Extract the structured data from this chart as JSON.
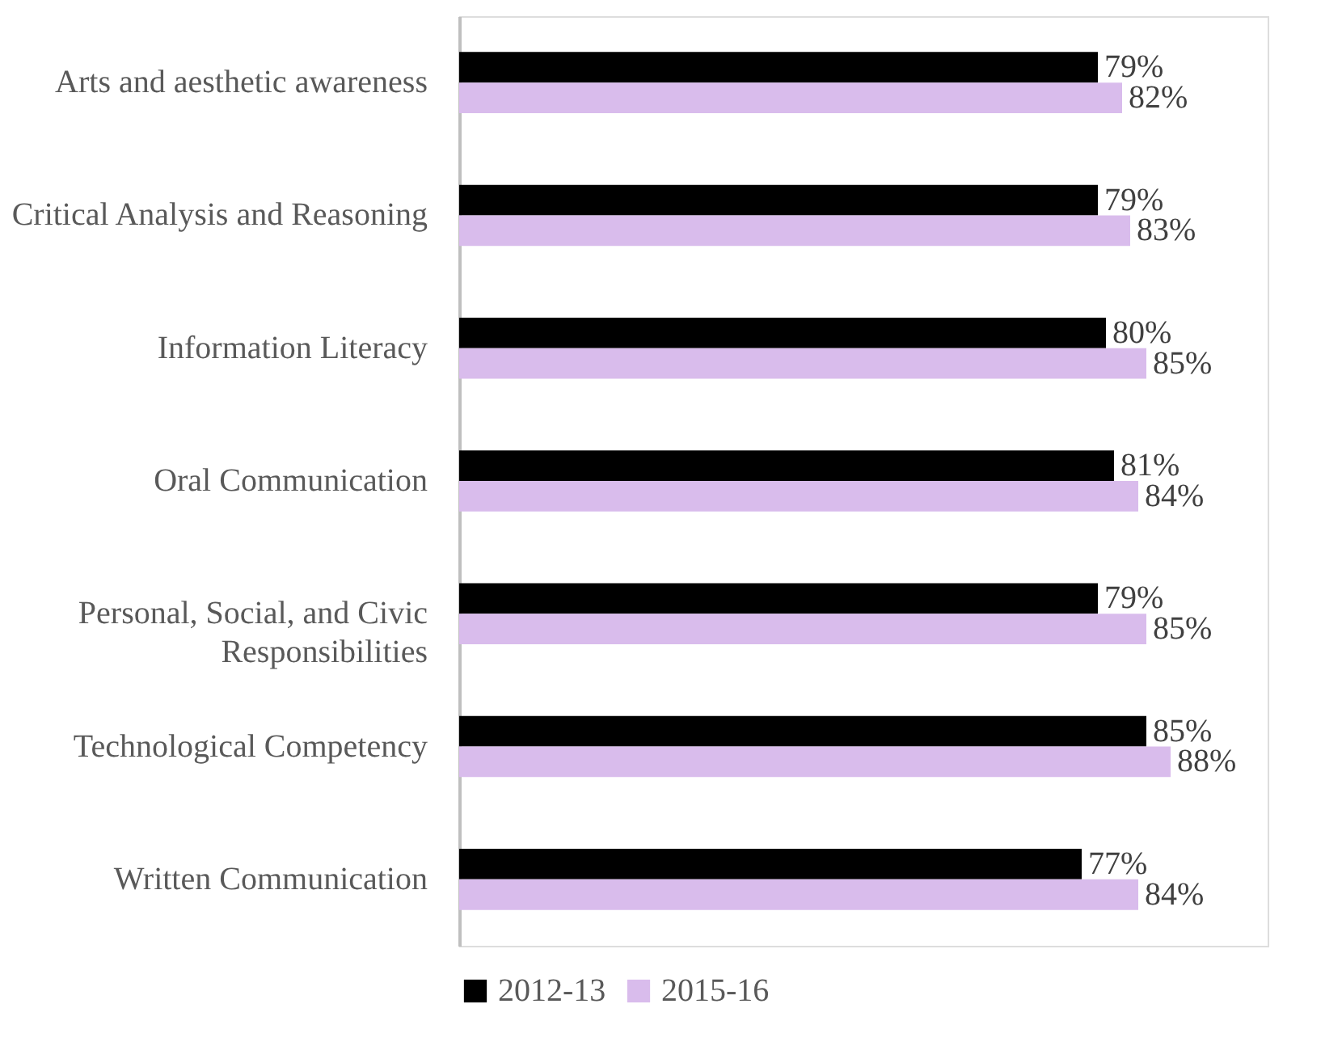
{
  "chart_data": {
    "type": "bar",
    "orientation": "horizontal",
    "categories": [
      "Arts and aesthetic awareness",
      "Critical Analysis and Reasoning",
      "Information Literacy",
      "Oral Communication",
      "Personal, Social, and Civic Responsibilities",
      "Technological Competency",
      "Written Communication"
    ],
    "series": [
      {
        "name": "2012-13",
        "color": "#000000",
        "values": [
          79,
          79,
          80,
          81,
          79,
          85,
          77
        ],
        "value_labels": [
          "79%",
          "79%",
          "80%",
          "81%",
          "79%",
          "85%",
          "77%"
        ]
      },
      {
        "name": "2015-16",
        "color": "#d9bcec",
        "values": [
          82,
          83,
          85,
          84,
          85,
          88,
          84
        ],
        "value_labels": [
          "82%",
          "83%",
          "85%",
          "84%",
          "85%",
          "88%",
          "84%"
        ]
      }
    ],
    "xlim": [
      0,
      100
    ],
    "tick_labels": "y",
    "legend": "bottom"
  }
}
